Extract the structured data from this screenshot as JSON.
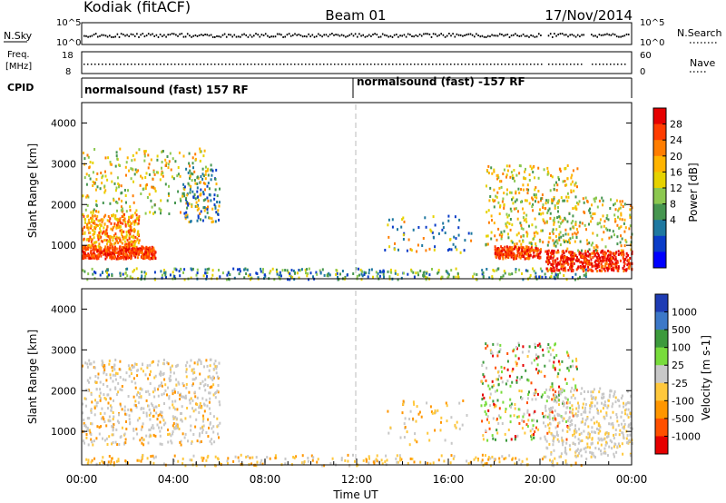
{
  "header": {
    "station": "Kodiak (fitACF)",
    "beam": "Beam 01",
    "date": "17/Nov/2014"
  },
  "panels": {
    "nsky": {
      "left_label": "N.Sky",
      "left_ticks": [
        "10^5",
        "10^0"
      ],
      "right_label": "N.Search",
      "right_ticks": [
        "10^5",
        "10^0"
      ]
    },
    "freq": {
      "left_label": "Freq.",
      "left_unit": "[MHz]",
      "left_ticks": [
        "18",
        "8"
      ],
      "right_label": "Nave",
      "right_ticks": [
        "60",
        "0"
      ]
    },
    "cpid": {
      "label": "CPID",
      "segments": [
        "normalsound (fast) 157 RF",
        "normalsound (fast) -157 RF"
      ]
    }
  },
  "chart_data": [
    {
      "type": "heatmap",
      "name": "power",
      "ylabel": "Slant Range [km]",
      "yticks": [
        1000,
        2000,
        3000,
        4000
      ],
      "ylim": [
        180,
        4500
      ],
      "xlim_hours": [
        0,
        24
      ],
      "colorbar": {
        "label": "Power [dB]",
        "ticks": [
          "28",
          "24",
          "20",
          "16",
          "12",
          "8",
          "4"
        ],
        "colors": [
          "#e60000",
          "#ff3c00",
          "#ff7d00",
          "#ffb400",
          "#e6d200",
          "#8cc850",
          "#469650",
          "#1e78a0",
          "#0a3cc8",
          "#0000ff"
        ]
      }
    },
    {
      "type": "heatmap",
      "name": "velocity",
      "ylabel": "Slant Range [km]",
      "yticks": [
        1000,
        2000,
        3000,
        4000
      ],
      "ylim": [
        180,
        4500
      ],
      "xlim_hours": [
        0,
        24
      ],
      "xlabel": "Time UT",
      "xticks": [
        "00:00",
        "04:00",
        "08:00",
        "12:00",
        "16:00",
        "20:00",
        "00:00"
      ],
      "colorbar": {
        "label": "Velocity [m s-1]",
        "ticks": [
          "1000",
          "500",
          "100",
          "25",
          "-25",
          "-100",
          "-500",
          "-1000"
        ],
        "colors": [
          "#1e3cb4",
          "#3c78c8",
          "#3c9a3c",
          "#78dc3c",
          "#c8c8c8",
          "#ffc83c",
          "#ff9600",
          "#ff5000",
          "#e60000"
        ]
      }
    }
  ]
}
